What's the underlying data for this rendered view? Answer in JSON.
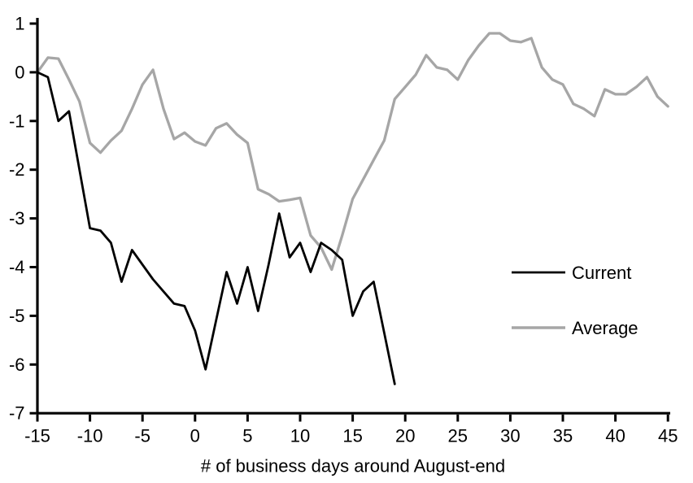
{
  "chart_data": {
    "type": "line",
    "title": "",
    "xlabel": "# of business days around August-end",
    "ylabel": "",
    "xlim": [
      -15,
      45
    ],
    "ylim": [
      -7,
      1
    ],
    "xticks": [
      -15,
      -10,
      -5,
      0,
      5,
      10,
      15,
      20,
      25,
      30,
      35,
      40,
      45
    ],
    "yticks": [
      1,
      0,
      -1,
      -2,
      -3,
      -4,
      -5,
      -6,
      -7
    ],
    "grid": false,
    "legend_position": "right-middle",
    "series": [
      {
        "name": "Average",
        "color": "#a6a6a6",
        "line_width": 3.3,
        "x": [
          -15,
          -14,
          -13,
          -12,
          -11,
          -10,
          -9,
          -8,
          -7,
          -6,
          -5,
          -4,
          -3,
          -2,
          -1,
          0,
          1,
          2,
          3,
          4,
          5,
          6,
          7,
          8,
          9,
          10,
          11,
          12,
          13,
          14,
          15,
          16,
          17,
          18,
          19,
          20,
          21,
          22,
          23,
          24,
          25,
          26,
          27,
          28,
          29,
          30,
          31,
          32,
          33,
          34,
          35,
          36,
          37,
          38,
          39,
          40,
          41,
          42,
          43,
          44,
          45
        ],
        "values": [
          0,
          0.3,
          0.28,
          -0.15,
          -0.6,
          -1.45,
          -1.65,
          -1.4,
          -1.2,
          -0.75,
          -0.25,
          0.05,
          -0.75,
          -1.37,
          -1.24,
          -1.42,
          -1.5,
          -1.15,
          -1.05,
          -1.28,
          -1.45,
          -2.4,
          -2.5,
          -2.65,
          -2.62,
          -2.58,
          -3.35,
          -3.6,
          -4.05,
          -3.35,
          -2.6,
          -2.2,
          -1.8,
          -1.4,
          -0.55,
          -0.3,
          -0.05,
          0.35,
          0.1,
          0.05,
          -0.15,
          0.25,
          0.55,
          0.8,
          0.8,
          0.65,
          0.62,
          0.7,
          0.1,
          -0.15,
          -0.25,
          -0.65,
          -0.75,
          -0.9,
          -0.35,
          -0.45,
          -0.45,
          -0.3,
          -0.1,
          -0.5,
          -0.7
        ]
      },
      {
        "name": "Current",
        "color": "#000000",
        "line_width": 2.8,
        "x": [
          -15,
          -14,
          -13,
          -12,
          -11,
          -10,
          -9,
          -8,
          -7,
          -6,
          -5,
          -4,
          -3,
          -2,
          -1,
          0,
          1,
          2,
          3,
          4,
          5,
          6,
          7,
          8,
          9,
          10,
          11,
          12,
          13,
          14,
          15,
          16,
          17,
          18,
          19
        ],
        "values": [
          0,
          -0.1,
          -1.0,
          -0.8,
          -2.0,
          -3.2,
          -3.25,
          -3.5,
          -4.3,
          -3.65,
          -3.95,
          -4.25,
          -4.5,
          -4.75,
          -4.8,
          -5.3,
          -6.1,
          -5.1,
          -4.1,
          -4.75,
          -4.0,
          -4.9,
          -3.95,
          -2.9,
          -3.8,
          -3.5,
          -4.1,
          -3.5,
          -3.65,
          -3.85,
          -5.0,
          -4.5,
          -4.3,
          -5.35,
          -6.4
        ]
      }
    ]
  },
  "legend": {
    "current_label": "Current",
    "average_label": "Average"
  },
  "colors": {
    "axis": "#000000",
    "background": "#ffffff",
    "current": "#000000",
    "average": "#a6a6a6"
  }
}
